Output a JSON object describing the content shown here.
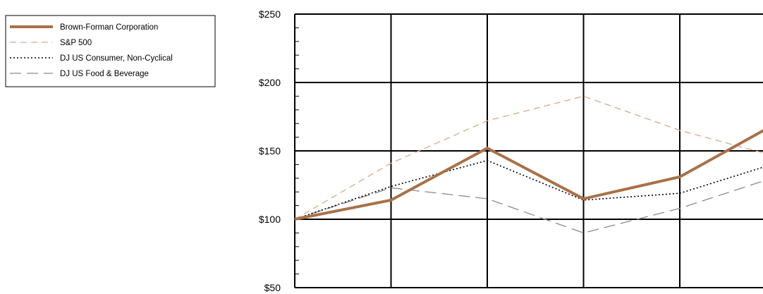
{
  "chart_data": {
    "type": "line",
    "title": "",
    "xlabel": "",
    "ylabel": "",
    "x": [
      0,
      1,
      2,
      3,
      4,
      5
    ],
    "ylim": [
      50,
      250
    ],
    "yticks": [
      {
        "value": 250,
        "label": "$250"
      },
      {
        "value": 200,
        "label": "$200"
      },
      {
        "value": 150,
        "label": "$150"
      },
      {
        "value": 100,
        "label": "$100"
      },
      {
        "value": 50,
        "label": "$50"
      }
    ],
    "grid": true,
    "legend_position": "top-left",
    "series": [
      {
        "name": "Brown-Forman Corporation",
        "values": [
          100,
          114,
          152,
          115,
          131,
          170
        ],
        "color": "#a8714a",
        "style": "solid-thick"
      },
      {
        "name": "S&P 500",
        "values": [
          100,
          141,
          172,
          190,
          165,
          146
        ],
        "color": "#d9a98a",
        "style": "dashed"
      },
      {
        "name": "DJ US Consumer, Non-Cyclical",
        "values": [
          100,
          124,
          143,
          114,
          119,
          141
        ],
        "color": "#000000",
        "style": "dotted"
      },
      {
        "name": "DJ US Food & Beverage",
        "values": [
          100,
          123,
          115,
          90,
          108,
          131
        ],
        "color": "#8a8a8a",
        "style": "long-dash"
      }
    ]
  }
}
